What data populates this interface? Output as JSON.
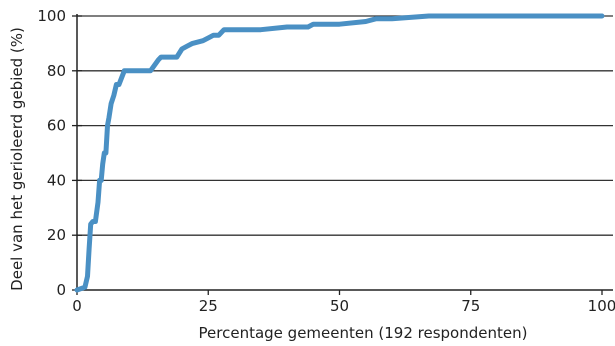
{
  "chart_data": {
    "type": "line",
    "title": "",
    "xlabel": "Percentage gemeenten (192 respondenten)",
    "ylabel": "Deel van het gerioleerd gebied (%)",
    "xlim": [
      0,
      100
    ],
    "ylim": [
      0,
      100
    ],
    "xticks": [
      0,
      25,
      50,
      75,
      100
    ],
    "yticks": [
      0,
      20,
      40,
      60,
      80,
      100
    ],
    "grid": "horizontal",
    "line_color": "#4a90c4",
    "series": [
      {
        "x": [
          0,
          1.5,
          2,
          2.3,
          2.6,
          3,
          3.5,
          4,
          4.3,
          4.6,
          4.9,
          5.2,
          5.5,
          5.8,
          6.1,
          6.5,
          7,
          7.5,
          8,
          9,
          10,
          11,
          12,
          14,
          15.5,
          16,
          19,
          20,
          21,
          22,
          24,
          25,
          26,
          27,
          28,
          30,
          35,
          40,
          44,
          45,
          50,
          55,
          57,
          60,
          67,
          70,
          75,
          80,
          85,
          90,
          95,
          99,
          100
        ],
        "y": [
          0,
          1,
          5,
          15,
          24,
          25,
          25,
          32,
          40,
          40,
          46,
          50,
          50,
          60,
          63,
          68,
          71,
          75,
          75,
          80,
          80,
          80,
          80,
          80,
          84,
          85,
          85,
          88,
          89,
          90,
          91,
          92,
          93,
          93,
          95,
          95,
          95,
          96,
          96,
          97,
          97,
          98,
          99,
          99,
          100,
          100,
          100,
          100,
          100,
          100,
          100,
          100,
          100
        ]
      }
    ]
  }
}
